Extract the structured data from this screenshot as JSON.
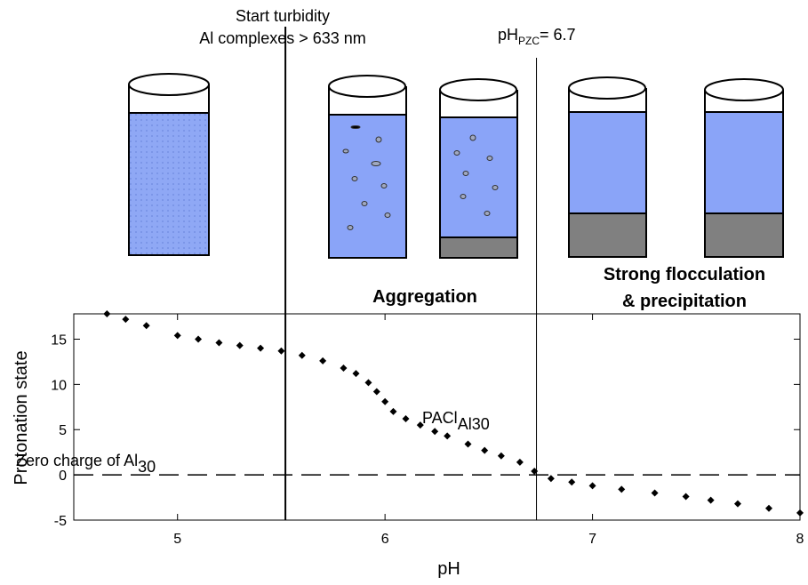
{
  "chart_data": {
    "type": "scatter",
    "annotations": {
      "turbidity_1": "Start turbidity",
      "turbidity_2": "Al complexes > 633 nm",
      "pzc_main": "pH",
      "pzc_sub": "PZC",
      "pzc_rest": "= 6.7",
      "aggregation": "Aggregation",
      "flocculation_1": "Strong flocculation",
      "flocculation_2": "& precipitation",
      "curve_main": "PACl",
      "curve_sub": "Al30",
      "zero_main": "Zero charge of Al",
      "zero_sub": "30"
    },
    "x_label": "pH",
    "y_label": "Protonation state",
    "xlim": [
      4.5,
      8
    ],
    "ylim": [
      -5,
      17.8
    ],
    "xticks": [
      5,
      6,
      7,
      8
    ],
    "yticks": [
      -5,
      0,
      5,
      10,
      15
    ],
    "vlines": [
      5.52,
      6.73
    ],
    "hline": 0,
    "series": [
      {
        "color": "#000000",
        "x": [
          4.66,
          4.75,
          4.85,
          5.0,
          5.1,
          5.2,
          5.3,
          5.4,
          5.5,
          5.6,
          5.7,
          5.8,
          5.86,
          5.92,
          5.96,
          6.0,
          6.04,
          6.1,
          6.17,
          6.24,
          6.3,
          6.4,
          6.48,
          6.56,
          6.65,
          6.72,
          6.8,
          6.9,
          7.0,
          7.14,
          7.3,
          7.45,
          7.57,
          7.7,
          7.85,
          8.0
        ],
        "values": [
          17.8,
          17.2,
          16.5,
          15.4,
          15.0,
          14.6,
          14.3,
          14.0,
          13.7,
          13.2,
          12.6,
          11.8,
          11.2,
          10.2,
          9.2,
          8.1,
          7.0,
          6.2,
          5.5,
          4.8,
          4.3,
          3.4,
          2.7,
          2.1,
          1.4,
          0.4,
          -0.4,
          -0.8,
          -1.2,
          -1.6,
          -2.0,
          -2.4,
          -2.8,
          -3.2,
          -3.7,
          -4.2
        ]
      }
    ]
  }
}
